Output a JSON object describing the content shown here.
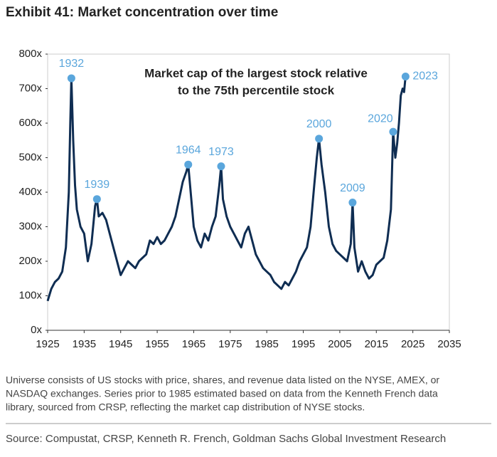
{
  "chart_data": {
    "type": "line",
    "title": "Exhibit 41: Market concentration over time",
    "subtitle_lines": [
      "Market cap of the largest stock relative",
      "to the 75th percentile stock"
    ],
    "footnote_lines": [
      "Universe consists of US stocks with price, shares, and revenue data listed on the NYSE, AMEX, or",
      "NASDAQ exchanges. Series prior to 1985 estimated based on data from the Kenneth French data",
      "library, sourced from CRSP, reflecting the market cap distribution of NYSE stocks."
    ],
    "source": "Source: Compustat, CRSP, Kenneth R. French, Goldman Sachs Global Investment Research",
    "xlim": [
      1925,
      2035
    ],
    "xticks": [
      1925,
      1935,
      1945,
      1955,
      1965,
      1975,
      1985,
      1995,
      2005,
      2015,
      2025,
      2035
    ],
    "ylim": [
      0,
      800
    ],
    "yticks": [
      {
        "value": 0,
        "label": "0x"
      },
      {
        "value": 100,
        "label": "100x"
      },
      {
        "value": 200,
        "label": "200x"
      },
      {
        "value": 300,
        "label": "300x"
      },
      {
        "value": 400,
        "label": "400x"
      },
      {
        "value": 500,
        "label": "500x"
      },
      {
        "value": 600,
        "label": "600x"
      },
      {
        "value": 700,
        "label": "700x"
      },
      {
        "value": 800,
        "label": "800x"
      }
    ],
    "series": [
      {
        "color": "#0f2d52",
        "x": [
          1925,
          1926,
          1927,
          1928,
          1929,
          1930,
          1930.8,
          1931.2,
          1931.5,
          1932,
          1932.5,
          1933,
          1934,
          1935,
          1936,
          1937,
          1938,
          1938.5,
          1939,
          1940,
          1941,
          1942,
          1943,
          1944,
          1945,
          1946,
          1947,
          1948,
          1949,
          1950,
          1951,
          1952,
          1953,
          1954,
          1955,
          1956,
          1957,
          1958,
          1959,
          1960,
          1961,
          1962,
          1963,
          1963.5,
          1964,
          1965,
          1966,
          1967,
          1968,
          1969,
          1970,
          1971,
          1972,
          1972.5,
          1973,
          1974,
          1975,
          1976,
          1977,
          1978,
          1979,
          1980,
          1981,
          1982,
          1983,
          1984,
          1985,
          1986,
          1987,
          1988,
          1989,
          1990,
          1991,
          1992,
          1993,
          1994,
          1995,
          1996,
          1997,
          1998,
          1998.7,
          1999.3,
          2000,
          2001,
          2002,
          2003,
          2004,
          2005,
          2006,
          2007,
          2008,
          2008.5,
          2009,
          2010,
          2011,
          2012,
          2013,
          2014,
          2015,
          2016,
          2017,
          2018,
          2019,
          2019.6,
          2020.2,
          2020.7,
          2021.2,
          2021.7,
          2022.2,
          2022.6,
          2023
        ],
        "values": [
          85,
          120,
          140,
          150,
          170,
          240,
          400,
          600,
          730,
          550,
          420,
          350,
          300,
          280,
          200,
          250,
          360,
          380,
          330,
          340,
          320,
          280,
          240,
          200,
          160,
          180,
          200,
          190,
          180,
          200,
          210,
          220,
          260,
          250,
          270,
          250,
          260,
          280,
          300,
          330,
          380,
          430,
          460,
          480,
          420,
          300,
          260,
          240,
          280,
          260,
          300,
          330,
          420,
          475,
          380,
          330,
          300,
          280,
          260,
          240,
          280,
          300,
          260,
          220,
          200,
          180,
          170,
          160,
          140,
          130,
          120,
          140,
          130,
          150,
          170,
          200,
          220,
          240,
          300,
          420,
          500,
          555,
          480,
          400,
          300,
          250,
          230,
          220,
          210,
          200,
          250,
          370,
          240,
          170,
          200,
          170,
          150,
          160,
          190,
          200,
          210,
          260,
          350,
          575,
          500,
          540,
          600,
          680,
          700,
          690,
          735
        ]
      }
    ],
    "annotations": [
      {
        "label": "1932",
        "x": 1931.5,
        "y": 730
      },
      {
        "label": "1939",
        "x": 1938.5,
        "y": 380
      },
      {
        "label": "1964",
        "x": 1963.5,
        "y": 480
      },
      {
        "label": "1973",
        "x": 1972.5,
        "y": 475
      },
      {
        "label": "2000",
        "x": 1999.3,
        "y": 555
      },
      {
        "label": "2009",
        "x": 2008.5,
        "y": 370
      },
      {
        "label": "2020",
        "x": 2019.6,
        "y": 575
      },
      {
        "label": "2023",
        "x": 2023,
        "y": 735
      }
    ],
    "annotation_color": "#5aa6dc"
  }
}
